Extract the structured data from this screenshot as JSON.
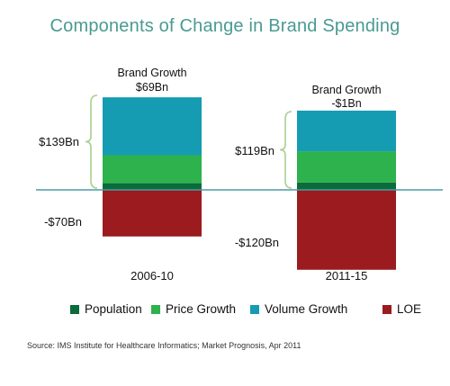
{
  "title": "Components of Change in Brand Spending",
  "source": "Source: IMS Institute for Healthcare Informatics; Market Prognosis, Apr 2011",
  "colors": {
    "population": "#0b6b3a",
    "price_growth": "#2db24e",
    "volume_growth": "#159cb2",
    "loe": "#9b1b1f",
    "axis": "#4a9aa8",
    "brace": "#a8d08d"
  },
  "chart_data": {
    "type": "bar",
    "stacked": true,
    "categories": [
      "2006-10",
      "2011-15"
    ],
    "series": [
      {
        "name": "Population",
        "values": [
          10,
          11
        ]
      },
      {
        "name": "Price Growth",
        "values": [
          42,
          47
        ]
      },
      {
        "name": "Volume Growth",
        "values": [
          87,
          61
        ]
      },
      {
        "name": "LOE",
        "values": [
          -70,
          -120
        ]
      }
    ],
    "positive_totals": [
      "$139Bn",
      "$119Bn"
    ],
    "negative_totals": [
      "-$70Bn",
      "-$120Bn"
    ],
    "brand_growth_label": "Brand Growth",
    "brand_growth_values": [
      "$69Bn",
      "-$1Bn"
    ],
    "legend_position": "bottom",
    "grid": false
  }
}
